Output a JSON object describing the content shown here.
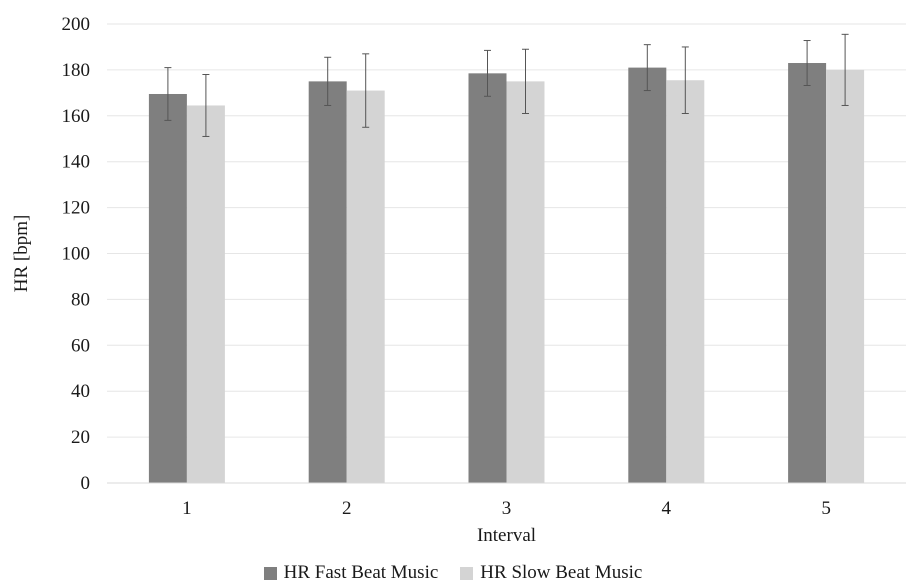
{
  "chart_data": {
    "type": "bar",
    "categories": [
      "1",
      "2",
      "3",
      "4",
      "5"
    ],
    "series": [
      {
        "name": "HR Fast Beat Music",
        "values": [
          169.5,
          175.0,
          178.5,
          181.0,
          183.0
        ],
        "error": [
          11.5,
          10.5,
          10.0,
          10.0,
          9.8
        ],
        "color": "#7f7f7f"
      },
      {
        "name": "HR Slow Beat Music",
        "values": [
          164.5,
          171.0,
          175.0,
          175.5,
          180.0
        ],
        "error": [
          13.5,
          16.0,
          14.0,
          14.5,
          15.5
        ],
        "color": "#d4d4d4"
      }
    ],
    "title": "",
    "xlabel": "Interval",
    "ylabel": "HR [bpm]",
    "ylim": [
      0,
      200
    ],
    "yticks": [
      0,
      20,
      40,
      60,
      80,
      100,
      120,
      140,
      160,
      180,
      200
    ],
    "grid": true,
    "legend_position": "bottom"
  }
}
